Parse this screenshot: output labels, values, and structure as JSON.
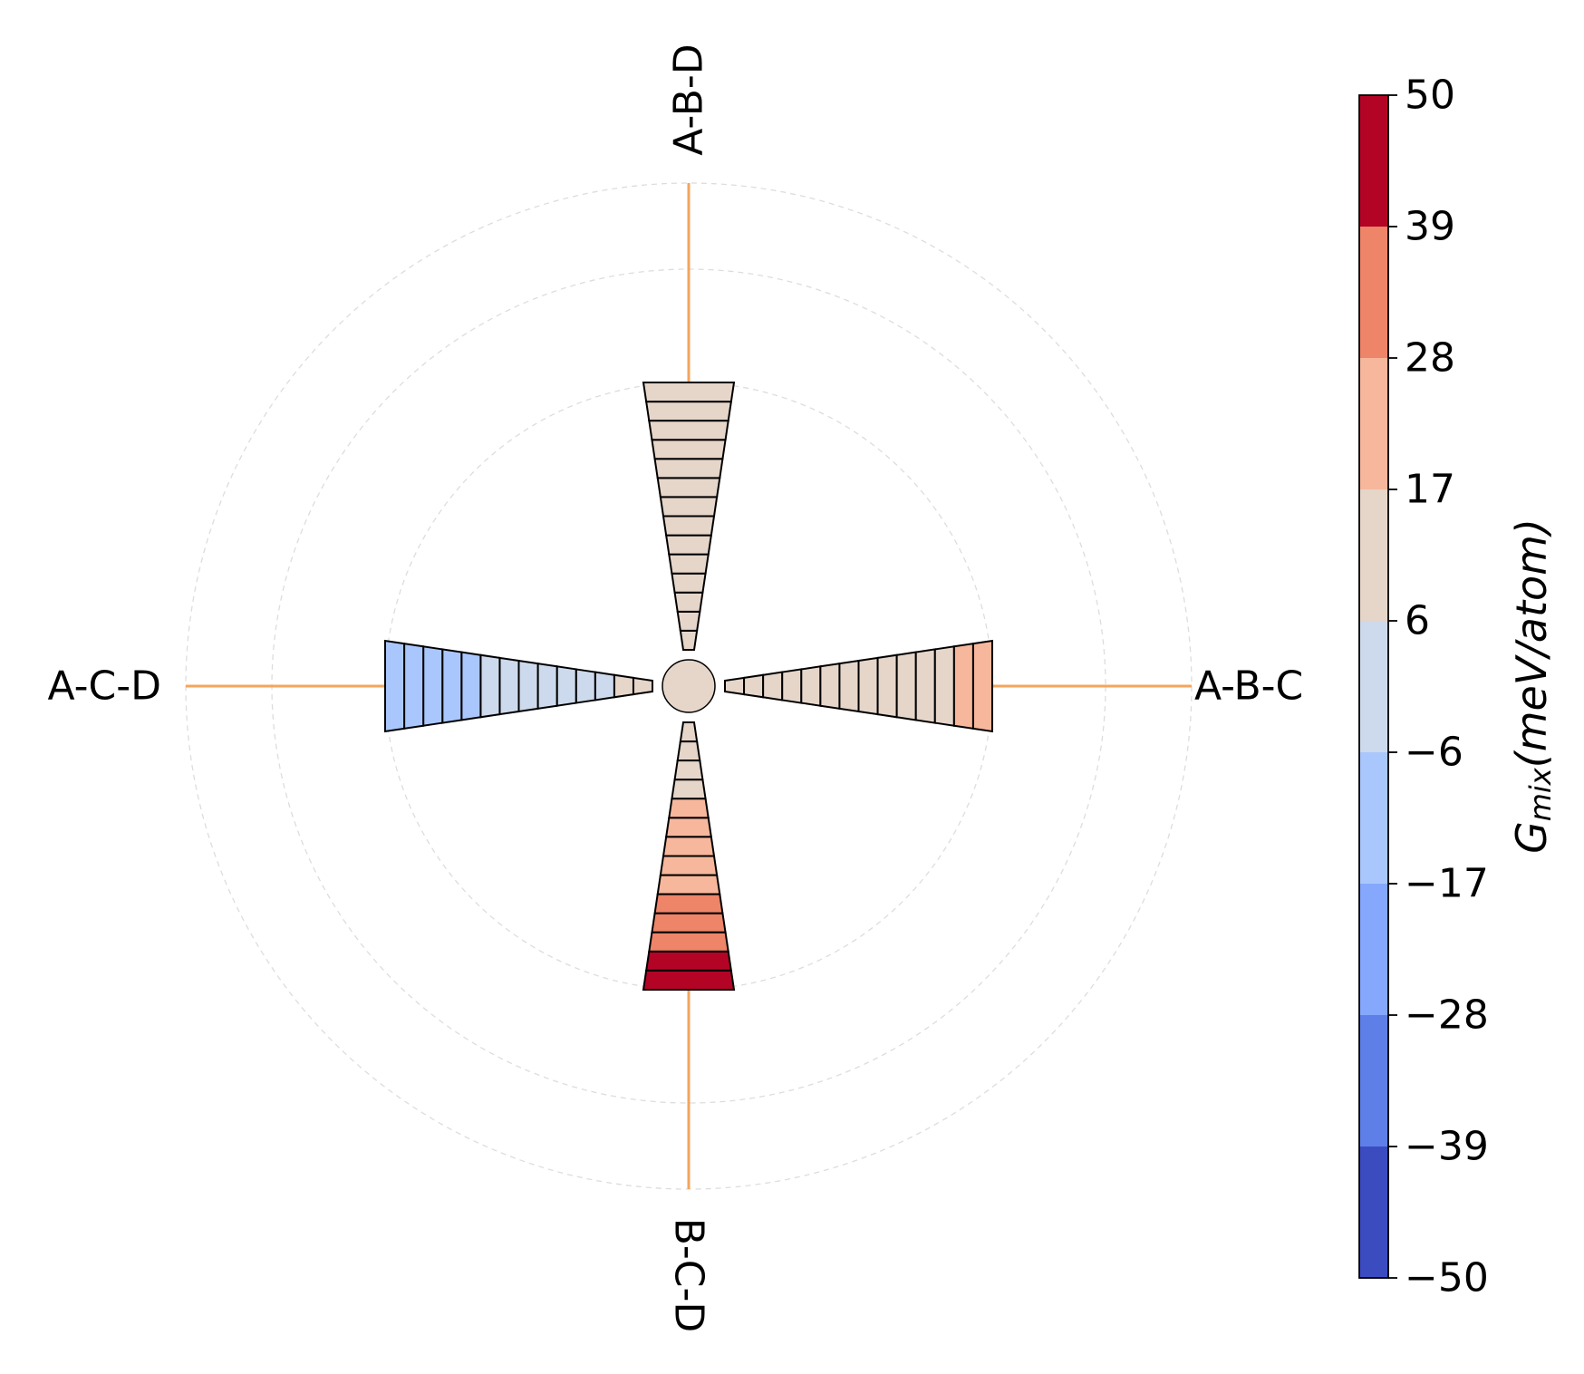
{
  "chart_data": {
    "type": "polar-bar",
    "directions": [
      {
        "label": "A-B-C",
        "angle": 0,
        "label_rotation": 0
      },
      {
        "label": "A-B-D",
        "angle": 90,
        "label_rotation": -90
      },
      {
        "label": "A-C-D",
        "angle": 180,
        "label_rotation": 0
      },
      {
        "label": "B-C-D",
        "angle": 270,
        "label_rotation": 90
      }
    ],
    "center_value": 12,
    "wedge_segments": 14,
    "values": {
      "A-B-C": [
        12,
        12,
        12,
        12,
        12,
        12,
        12,
        12,
        12,
        13,
        14,
        15,
        19,
        24
      ],
      "A-B-D": [
        12,
        12,
        12,
        12,
        12,
        12,
        12,
        12,
        12,
        12,
        12,
        12,
        12,
        12
      ],
      "A-C-D": [
        12,
        12,
        3,
        2,
        1,
        0,
        -1,
        -3,
        -5,
        -8,
        -9,
        -10,
        -11,
        -12
      ],
      "B-C-D": [
        12,
        12,
        12,
        13,
        18,
        20,
        22,
        24,
        26,
        30,
        32,
        36,
        48,
        49
      ]
    },
    "grid": "dashed concentric circles",
    "colorbar": {
      "label_main": "G",
      "label_sub": "mix",
      "label_unit": "(meV/atom)",
      "range": [
        -50,
        50
      ],
      "ticks": [
        "50",
        "39",
        "28",
        "17",
        "6",
        "−6",
        "−17",
        "−28",
        "−39",
        "−50"
      ],
      "colors_top_to_bottom": [
        "#b40426",
        "#ee8468",
        "#f6b79c",
        "#e6d5c9",
        "#cdd9ec",
        "#aac7fd",
        "#85a8fc",
        "#5f7fe8",
        "#3b4cc0"
      ]
    },
    "axis_line_color": "#f4a45c",
    "grid_color": "#dddddd"
  }
}
